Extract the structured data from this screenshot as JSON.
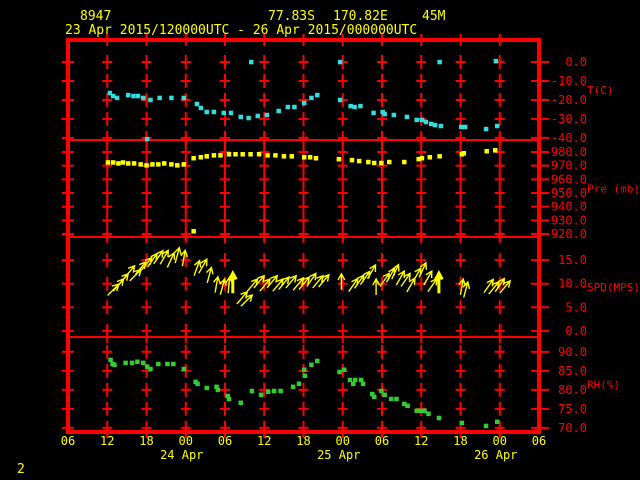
{
  "header": {
    "station_id": "8947",
    "latitude": "77.83S",
    "longitude": "170.82E",
    "elevation": "45M",
    "time_range": "23 Apr 2015/120000UTC - 26 Apr 2015/000000UTC"
  },
  "footer": {
    "page_number": "2"
  },
  "colors": {
    "background": "#000000",
    "frame": "#ff0000",
    "grid": "#ff0000",
    "axis_text": "#ff0000",
    "time_text": "#ffff00",
    "temperature": "#33dddd",
    "pressure": "#ffff00",
    "wind": "#ffff00",
    "humidity": "#33cc33"
  },
  "chart_data": {
    "type": "scatter",
    "title": "Surface meteogram",
    "x_axis": {
      "start": "23 Apr 2015 06UTC",
      "end": "26 Apr 2015 06UTC",
      "hours_span": 72,
      "tick_hours": [
        0,
        6,
        12,
        18,
        24,
        30,
        36,
        42,
        48,
        54,
        60,
        66,
        72
      ],
      "tick_labels": [
        "06",
        "12",
        "18",
        "00",
        "06",
        "12",
        "18",
        "00",
        "06",
        "12",
        "18",
        "00",
        "06"
      ],
      "grid_hours": [
        6,
        12,
        18,
        24,
        30,
        36,
        42,
        48,
        54,
        60,
        66
      ],
      "date_labels": [
        {
          "label": "24 Apr",
          "hour": 18
        },
        {
          "label": "25 Apr",
          "hour": 42
        },
        {
          "label": "26 Apr",
          "hour": 66
        }
      ]
    },
    "panels": [
      {
        "name": "temperature",
        "label": "T(C)",
        "color_key": "temperature",
        "ticks": [
          0,
          -10,
          -20,
          -30,
          -40
        ],
        "value_top": 11.6,
        "value_bottom": -41.1,
        "points": [
          [
            6.4,
            -16.3
          ],
          [
            6.9,
            -17.9
          ],
          [
            7.5,
            -18.9
          ],
          [
            9.2,
            -17.4
          ],
          [
            10,
            -17.9
          ],
          [
            10.7,
            -17.9
          ],
          [
            11.5,
            -18.9
          ],
          [
            12.6,
            -20
          ],
          [
            14,
            -18.9
          ],
          [
            15.8,
            -18.9
          ],
          [
            17.7,
            -18.9
          ],
          [
            19.7,
            -22.1
          ],
          [
            20.3,
            -24.2
          ],
          [
            21.2,
            -26.3
          ],
          [
            22.3,
            -26.3
          ],
          [
            23.8,
            -26.8
          ],
          [
            24.9,
            -26.8
          ],
          [
            26.4,
            -28.9
          ],
          [
            27.6,
            -29.5
          ],
          [
            29,
            -28.4
          ],
          [
            30.4,
            -27.9
          ],
          [
            32.2,
            -25.8
          ],
          [
            33.6,
            -23.7
          ],
          [
            34.6,
            -23.7
          ],
          [
            36.1,
            -21.6
          ],
          [
            37.2,
            -18.9
          ],
          [
            38.1,
            -17.4
          ],
          [
            41.6,
            -20
          ],
          [
            43.2,
            -23.2
          ],
          [
            43.8,
            -23.7
          ],
          [
            44.7,
            -23.2
          ],
          [
            46.7,
            -26.8
          ],
          [
            48.1,
            -26.3
          ],
          [
            48.4,
            -27.4
          ],
          [
            49.8,
            -27.9
          ],
          [
            51.8,
            -28.9
          ],
          [
            53.3,
            -30.5
          ],
          [
            54.1,
            -30.5
          ],
          [
            54.7,
            -31.6
          ],
          [
            55.5,
            -32.6
          ],
          [
            56.1,
            -33.2
          ],
          [
            57,
            -33.7
          ],
          [
            60.1,
            -34.2
          ],
          [
            60.7,
            -34.2
          ],
          [
            63.9,
            -35.3
          ],
          [
            65.6,
            -33.7
          ]
        ],
        "outliers": [
          [
            28,
            0
          ],
          [
            41.6,
            0
          ],
          [
            56.8,
            0
          ],
          [
            65.4,
            0.5
          ],
          [
            12.1,
            -40.6
          ]
        ]
      },
      {
        "name": "pressure",
        "label": "Pre (mb)",
        "color_key": "pressure",
        "ticks": [
          980,
          970,
          960,
          950,
          940,
          930,
          920
        ],
        "value_top": 988.8,
        "value_bottom": 917.8,
        "points": [
          [
            6.1,
            972.4
          ],
          [
            6.9,
            972.4
          ],
          [
            7.7,
            971.7
          ],
          [
            8.4,
            972.4
          ],
          [
            9.2,
            971.7
          ],
          [
            10.1,
            971.7
          ],
          [
            11.1,
            971
          ],
          [
            12,
            970.3
          ],
          [
            12.9,
            971
          ],
          [
            13.8,
            971
          ],
          [
            14.7,
            971.7
          ],
          [
            15.8,
            971
          ],
          [
            16.7,
            970.3
          ],
          [
            17.7,
            971
          ],
          [
            19.2,
            975.5
          ],
          [
            20.3,
            976.2
          ],
          [
            21.2,
            976.9
          ],
          [
            22.3,
            977.6
          ],
          [
            23.3,
            977.6
          ],
          [
            24.6,
            978.4
          ],
          [
            25.6,
            978.4
          ],
          [
            26.7,
            978.4
          ],
          [
            27.9,
            978.4
          ],
          [
            29.2,
            978.4
          ],
          [
            30.5,
            977.6
          ],
          [
            31.7,
            977.6
          ],
          [
            33,
            976.9
          ],
          [
            34.2,
            976.9
          ],
          [
            36.1,
            976.2
          ],
          [
            37,
            976.2
          ],
          [
            37.9,
            975.5
          ],
          [
            41.4,
            974.8
          ],
          [
            43.4,
            974.1
          ],
          [
            44.5,
            973.4
          ],
          [
            45.9,
            972.7
          ],
          [
            46.8,
            972
          ],
          [
            47.9,
            972
          ],
          [
            49.1,
            972.7
          ],
          [
            51.4,
            972.7
          ],
          [
            53.6,
            974.8
          ],
          [
            54.1,
            975.5
          ],
          [
            55.3,
            976.2
          ],
          [
            56.8,
            976.9
          ],
          [
            60.2,
            978.4
          ],
          [
            60.5,
            979.1
          ],
          [
            64,
            980.6
          ],
          [
            65.3,
            981.3
          ]
        ],
        "outliers": [
          [
            19.2,
            922
          ]
        ]
      },
      {
        "name": "wind_speed",
        "label": "SPD(MPS)",
        "color_key": "wind",
        "ticks": [
          15,
          10,
          5,
          0
        ],
        "value_top": 19.9,
        "value_bottom": -1.3,
        "points": [],
        "outliers": [],
        "arrows": [
          [
            6.9,
            8.7,
            45,
            0
          ],
          [
            7.7,
            9.7,
            40,
            0
          ],
          [
            8.4,
            10.8,
            40,
            0
          ],
          [
            9.4,
            12.5,
            40,
            0
          ],
          [
            10.3,
            11.8,
            45,
            0
          ],
          [
            11.1,
            13.3,
            40,
            0
          ],
          [
            12,
            14.2,
            40,
            0
          ],
          [
            12.9,
            15,
            35,
            0
          ],
          [
            13.8,
            15.6,
            35,
            0
          ],
          [
            14.7,
            15.6,
            30,
            0
          ],
          [
            15.7,
            15,
            25,
            0
          ],
          [
            16.7,
            16,
            15,
            0
          ],
          [
            17.7,
            15.4,
            10,
            0
          ],
          [
            19.7,
            13.3,
            20,
            0
          ],
          [
            20.6,
            13.7,
            30,
            0
          ],
          [
            21.6,
            11.8,
            15,
            0
          ],
          [
            22.7,
            9.8,
            10,
            0
          ],
          [
            23.6,
            9.3,
            15,
            0
          ],
          [
            24.6,
            9.7,
            5,
            0
          ],
          [
            25.2,
            10.1,
            0,
            1
          ],
          [
            26.6,
            7,
            40,
            0
          ],
          [
            27.3,
            6.4,
            45,
            0
          ],
          [
            28.2,
            9.7,
            40,
            0
          ],
          [
            29.2,
            10.4,
            40,
            0
          ],
          [
            30.1,
            9.7,
            40,
            0
          ],
          [
            31.2,
            10.4,
            40,
            0
          ],
          [
            32.1,
            9.7,
            40,
            0
          ],
          [
            33,
            10.1,
            40,
            0
          ],
          [
            34.1,
            10.4,
            40,
            0
          ],
          [
            35.2,
            9.9,
            40,
            0
          ],
          [
            36.1,
            10.1,
            40,
            0
          ],
          [
            37.2,
            10.8,
            35,
            0
          ],
          [
            38.2,
            10.4,
            40,
            0
          ],
          [
            39.1,
            10.6,
            40,
            0
          ],
          [
            41.8,
            10.4,
            0,
            0
          ],
          [
            43.6,
            9.7,
            35,
            0
          ],
          [
            44.5,
            10.4,
            35,
            0
          ],
          [
            45.4,
            11.2,
            35,
            0
          ],
          [
            46.4,
            12.5,
            30,
            0
          ],
          [
            47.1,
            9.3,
            0,
            0
          ],
          [
            48.4,
            10.8,
            35,
            0
          ],
          [
            49.3,
            11.8,
            30,
            0
          ],
          [
            50,
            12.5,
            25,
            0
          ],
          [
            50.8,
            11.2,
            30,
            0
          ],
          [
            51.6,
            10.8,
            35,
            0
          ],
          [
            52.4,
            9.7,
            30,
            0
          ],
          [
            53.3,
            11.8,
            30,
            0
          ],
          [
            54.2,
            12.9,
            25,
            0
          ],
          [
            55,
            11.2,
            30,
            0
          ],
          [
            55.7,
            9.7,
            35,
            0
          ],
          [
            56.7,
            10.1,
            0,
            1
          ],
          [
            60.2,
            9.3,
            10,
            0
          ],
          [
            60.8,
            8.7,
            15,
            0
          ],
          [
            64.3,
            9.5,
            35,
            0
          ],
          [
            65.1,
            9.1,
            40,
            0
          ],
          [
            66,
            9.7,
            35,
            0
          ],
          [
            66.8,
            9.3,
            40,
            0
          ]
        ]
      },
      {
        "name": "humidity",
        "label": "RH(%)",
        "color_key": "humidity",
        "ticks": [
          90,
          85,
          80,
          75,
          70
        ],
        "value_top": 93.9,
        "value_bottom": 68.9,
        "points": [
          [
            6.5,
            87.9
          ],
          [
            6.8,
            86.8
          ],
          [
            7.1,
            86.6
          ],
          [
            8.8,
            87.1
          ],
          [
            9.8,
            87.1
          ],
          [
            10.6,
            87.4
          ],
          [
            11.5,
            87.1
          ],
          [
            12.1,
            86.1
          ],
          [
            12.6,
            85.5
          ],
          [
            13.8,
            86.8
          ],
          [
            15.2,
            86.8
          ],
          [
            16.1,
            86.8
          ],
          [
            17.7,
            85.5
          ],
          [
            19.5,
            82.1
          ],
          [
            19.8,
            81.6
          ],
          [
            21.2,
            80.5
          ],
          [
            22.7,
            80.8
          ],
          [
            22.9,
            80
          ],
          [
            24.4,
            78.4
          ],
          [
            24.6,
            77.6
          ],
          [
            26.4,
            76.6
          ],
          [
            28.1,
            79.7
          ],
          [
            29.5,
            78.7
          ],
          [
            30.6,
            79.5
          ],
          [
            31.5,
            79.7
          ],
          [
            32.5,
            79.7
          ],
          [
            34.4,
            80.8
          ],
          [
            35.3,
            81.6
          ],
          [
            36.1,
            85.3
          ],
          [
            36.2,
            83.7
          ],
          [
            37.2,
            86.6
          ],
          [
            38.1,
            87.6
          ],
          [
            41.5,
            84.7
          ],
          [
            42.2,
            85.3
          ],
          [
            43.1,
            82.6
          ],
          [
            43.6,
            81.6
          ],
          [
            43.9,
            82.6
          ],
          [
            44.8,
            82.6
          ],
          [
            45.1,
            81.6
          ],
          [
            46.5,
            78.9
          ],
          [
            46.8,
            78.2
          ],
          [
            47.9,
            79.7
          ],
          [
            48.4,
            78.7
          ],
          [
            49.4,
            77.6
          ],
          [
            50.2,
            77.6
          ],
          [
            51.4,
            76.3
          ],
          [
            51.9,
            75.8
          ],
          [
            53.3,
            74.5
          ],
          [
            53.9,
            74.5
          ],
          [
            54.5,
            74.5
          ],
          [
            55.1,
            73.7
          ],
          [
            56.7,
            72.6
          ],
          [
            60.2,
            71.3
          ],
          [
            63.9,
            70.5
          ],
          [
            65.6,
            71.6
          ]
        ],
        "outliers": []
      }
    ]
  }
}
